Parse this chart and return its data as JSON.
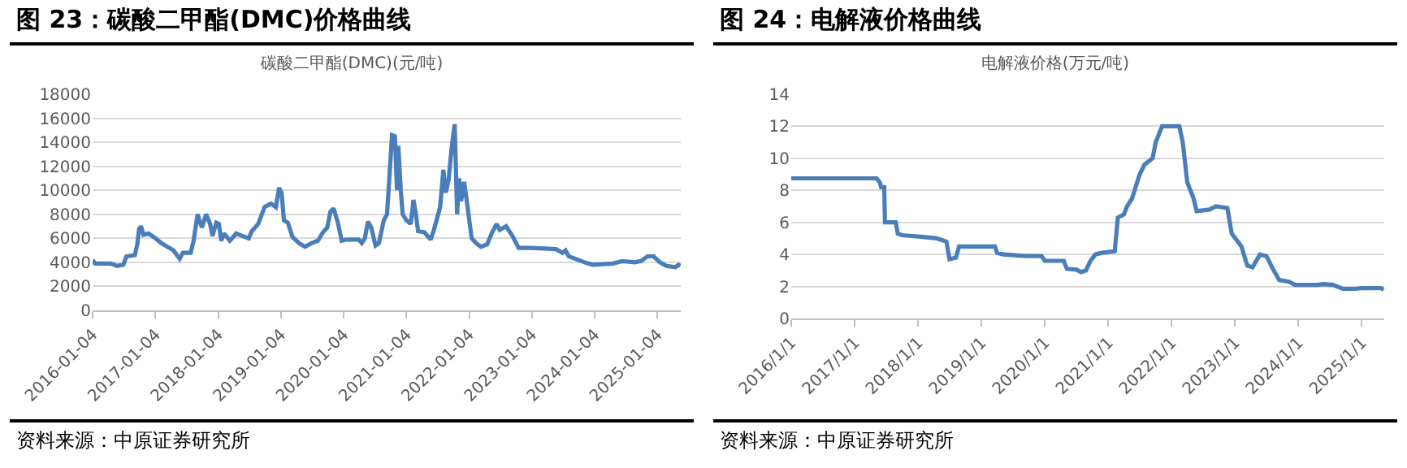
{
  "chart_data": [
    {
      "type": "line",
      "title": "图 23：碳酸二甲酯(DMC)价格曲线",
      "subtitle": "碳酸二甲酯(DMC)(元/吨)",
      "x": [
        "2016-01-04",
        "2016-01-19",
        "2016-04-19",
        "2016-05-25",
        "2016-07-01",
        "2016-07-19",
        "2016-09-06",
        "2016-09-20",
        "2016-10-01",
        "2016-10-12",
        "2016-10-26",
        "2016-11-25",
        "2017-01-04",
        "2017-02-07",
        "2017-04-19",
        "2017-05-25",
        "2017-06-13",
        "2017-07-28",
        "2017-08-14",
        "2017-09-06",
        "2017-10-01",
        "2017-10-26",
        "2017-11-18",
        "2017-12-02",
        "2017-12-24",
        "2018-01-08",
        "2018-01-22",
        "2018-02-07",
        "2018-03-13",
        "2018-04-19",
        "2018-05-25",
        "2018-07-01",
        "2018-07-19",
        "2018-08-25",
        "2018-10-01",
        "2018-11-07",
        "2018-12-06",
        "2018-12-24",
        "2019-01-08",
        "2019-01-22",
        "2019-02-14",
        "2019-03-13",
        "2019-04-19",
        "2019-05-25",
        "2019-07-01",
        "2019-08-07",
        "2019-09-06",
        "2019-10-01",
        "2019-10-19",
        "2019-11-07",
        "2019-12-02",
        "2019-12-24",
        "2020-01-19",
        "2020-04-01",
        "2020-04-19",
        "2020-05-07",
        "2020-05-25",
        "2020-06-13",
        "2020-07-08",
        "2020-07-28",
        "2020-08-25",
        "2020-09-13",
        "2020-10-01",
        "2020-10-12",
        "2020-10-29",
        "2020-11-10",
        "2020-11-18",
        "2020-12-02",
        "2020-12-13",
        "2021-01-04",
        "2021-01-29",
        "2021-02-14",
        "2021-02-25",
        "2021-03-13",
        "2021-04-19",
        "2021-05-25",
        "2021-06-13",
        "2021-07-19",
        "2021-08-07",
        "2021-08-21",
        "2021-09-06",
        "2021-09-24",
        "2021-10-12",
        "2021-10-26",
        "2021-11-07",
        "2021-11-18",
        "2021-12-06",
        "2021-12-24",
        "2022-01-19",
        "2022-02-14",
        "2022-03-13",
        "2022-04-19",
        "2022-05-18",
        "2022-06-13",
        "2022-07-01",
        "2022-08-07",
        "2022-09-13",
        "2022-10-19",
        "2023-01-04",
        "2023-05-25",
        "2023-07-01",
        "2023-07-19",
        "2023-08-07",
        "2023-10-01",
        "2023-11-07",
        "2023-12-24",
        "2024-04-19",
        "2024-06-13",
        "2024-08-25",
        "2024-10-01",
        "2024-11-07",
        "2024-12-13",
        "2025-01-19",
        "2025-02-25",
        "2025-04-19",
        "2025-05-07",
        "2025-05-18"
      ],
      "series": [
        {
          "color": "#4a7ebb",
          "values": [
            4200,
            3900,
            3900,
            3700,
            3800,
            4500,
            4600,
            5500,
            6800,
            7000,
            6300,
            6400,
            6000,
            5600,
            5000,
            4300,
            4800,
            4800,
            5800,
            8000,
            6900,
            8000,
            7200,
            6200,
            7300,
            7200,
            5800,
            6400,
            5800,
            6400,
            6200,
            6000,
            6600,
            7200,
            8600,
            8900,
            8600,
            10200,
            9800,
            7500,
            7300,
            6100,
            5600,
            5300,
            5600,
            5800,
            6500,
            6900,
            8200,
            8500,
            7300,
            5800,
            5900,
            5900,
            5600,
            6000,
            7400,
            6900,
            5400,
            5600,
            7500,
            8000,
            12000,
            14600,
            14500,
            10000,
            13700,
            10000,
            8000,
            7500,
            7200,
            9200,
            8300,
            6600,
            6500,
            5900,
            6700,
            8600,
            11700,
            9800,
            10800,
            13500,
            15500,
            8000,
            11000,
            9100,
            10700,
            8800,
            6000,
            5600,
            5300,
            5500,
            6500,
            7200,
            6700,
            7000,
            6200,
            5200,
            5200,
            5100,
            4800,
            5000,
            4500,
            4200,
            4000,
            3800,
            3900,
            4100,
            4000,
            4100,
            4500,
            4500,
            4000,
            3700,
            3600,
            3800,
            3700
          ]
        }
      ],
      "xlim": [
        "2016-01-04",
        "2025-05-20"
      ],
      "xticks": [
        {
          "value": "2016-01-04",
          "label": "2016-01-04"
        },
        {
          "value": "2017-01-04",
          "label": "2017-01-04"
        },
        {
          "value": "2018-01-04",
          "label": "2018-01-04"
        },
        {
          "value": "2019-01-04",
          "label": "2019-01-04"
        },
        {
          "value": "2020-01-04",
          "label": "2020-01-04"
        },
        {
          "value": "2021-01-04",
          "label": "2021-01-04"
        },
        {
          "value": "2022-01-04",
          "label": "2022-01-04"
        },
        {
          "value": "2023-01-04",
          "label": "2023-01-04"
        },
        {
          "value": "2024-01-04",
          "label": "2024-01-04"
        },
        {
          "value": "2025-01-04",
          "label": "2025-01-04"
        }
      ],
      "ylim": [
        0,
        18000
      ],
      "yticks": [
        0,
        2000,
        4000,
        6000,
        8000,
        10000,
        12000,
        14000,
        16000,
        18000
      ],
      "grid": "y",
      "annotations": [
        "资料来源：中原证券研究所"
      ]
    },
    {
      "type": "line",
      "title": "图 24：电解液价格曲线",
      "subtitle": "电解液价格(万元/吨)",
      "x": [
        "2016-01-01",
        "2017-05-07",
        "2017-05-25",
        "2017-06-02",
        "2017-06-20",
        "2017-06-24",
        "2017-08-25",
        "2017-09-06",
        "2017-10-01",
        "2018-01-19",
        "2018-04-19",
        "2018-06-13",
        "2018-07-01",
        "2018-08-07",
        "2018-08-25",
        "2019-03-20",
        "2019-04-01",
        "2019-05-07",
        "2019-09-13",
        "2019-12-13",
        "2020-01-01",
        "2020-04-19",
        "2020-05-07",
        "2020-07-01",
        "2020-07-28",
        "2020-08-25",
        "2020-09-20",
        "2020-10-19",
        "2020-11-25",
        "2021-02-07",
        "2021-02-25",
        "2021-04-01",
        "2021-04-19",
        "2021-05-18",
        "2021-07-01",
        "2021-07-28",
        "2021-09-13",
        "2021-10-01",
        "2021-11-07",
        "2022-02-14",
        "2022-03-06",
        "2022-04-01",
        "2022-05-07",
        "2022-05-25",
        "2022-08-07",
        "2022-09-13",
        "2022-11-18",
        "2022-12-13",
        "2023-02-07",
        "2023-03-13",
        "2023-04-12",
        "2023-05-25",
        "2023-07-01",
        "2023-08-07",
        "2023-09-13",
        "2023-11-07",
        "2023-12-13",
        "2024-04-19",
        "2024-05-25",
        "2024-07-19",
        "2024-09-13",
        "2024-11-25",
        "2025-01-01",
        "2025-04-19",
        "2025-05-07"
      ],
      "series": [
        {
          "color": "#4a7ebb",
          "values": [
            8.75,
            8.75,
            8.5,
            8.2,
            8.2,
            6.0,
            6.0,
            5.3,
            5.2,
            5.1,
            5.0,
            4.8,
            3.7,
            3.8,
            4.5,
            4.5,
            4.1,
            4.0,
            3.9,
            3.9,
            3.6,
            3.6,
            3.1,
            3.05,
            2.9,
            3.0,
            3.6,
            4.0,
            4.1,
            4.2,
            6.3,
            6.5,
            7.0,
            7.5,
            9.0,
            9.6,
            10.0,
            11.0,
            12.0,
            12.0,
            11.0,
            8.5,
            7.5,
            6.7,
            6.8,
            7.0,
            6.9,
            5.3,
            4.5,
            3.3,
            3.2,
            4.0,
            3.9,
            3.1,
            2.4,
            2.3,
            2.1,
            2.1,
            2.15,
            2.1,
            1.85,
            1.85,
            1.9,
            1.9,
            1.8
          ]
        }
      ],
      "xlim": [
        "2016-01-01",
        "2025-05-10"
      ],
      "xticks": [
        {
          "value": "2016-01-01",
          "label": "2016/1/1"
        },
        {
          "value": "2017-01-01",
          "label": "2017/1/1"
        },
        {
          "value": "2018-01-01",
          "label": "2018/1/1"
        },
        {
          "value": "2019-01-01",
          "label": "2019/1/1"
        },
        {
          "value": "2020-01-01",
          "label": "2020/1/1"
        },
        {
          "value": "2021-01-01",
          "label": "2021/1/1"
        },
        {
          "value": "2022-01-01",
          "label": "2022/1/1"
        },
        {
          "value": "2023-01-01",
          "label": "2023/1/1"
        },
        {
          "value": "2024-01-01",
          "label": "2024/1/1"
        },
        {
          "value": "2025-01-01",
          "label": "2025/1/1"
        }
      ],
      "ylim": [
        0,
        14
      ],
      "yticks": [
        0,
        2,
        4,
        6,
        8,
        10,
        12,
        14
      ],
      "grid": "y",
      "annotations": [
        "资料来源：中原证券研究所"
      ]
    }
  ]
}
